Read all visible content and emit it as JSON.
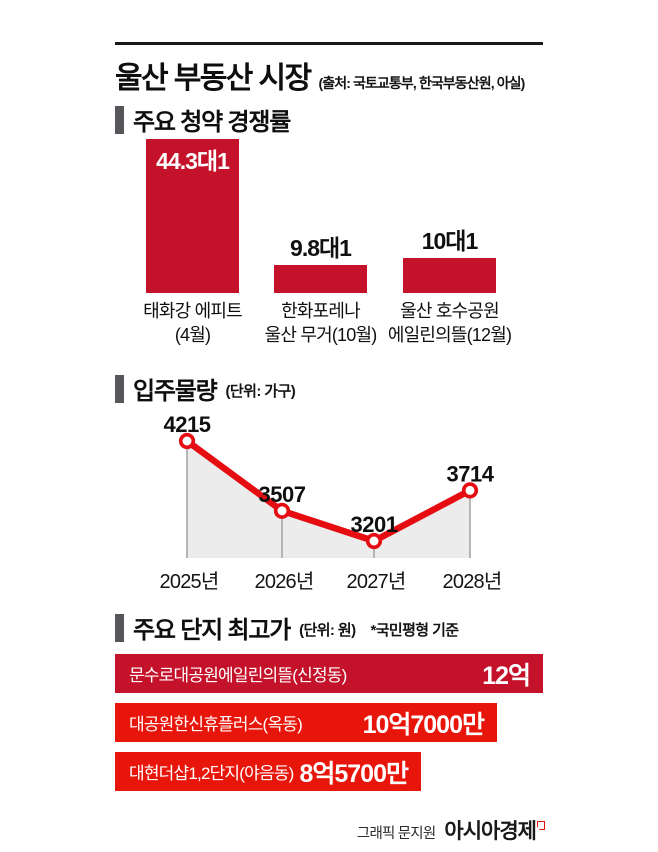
{
  "header": {
    "title": "울산 부동산 시장",
    "source": "(출처: 국토교통부, 한국부동산원, 아실)"
  },
  "sections": {
    "competition": {
      "title": "주요 청약 경쟁률",
      "bars": [
        {
          "value": 44.3,
          "value_label": "44.3대1",
          "name_line1": "태화강 에피트",
          "name_line2": "(4월)"
        },
        {
          "value": 9.8,
          "value_label": "9.8대1",
          "name_line1": "한화포레나",
          "name_line2": "울산 무거(10월)"
        },
        {
          "value": 10,
          "value_label": "10대1",
          "name_line1": "울산 호수공원",
          "name_line2": "에일린의뜰(12월)"
        }
      ]
    },
    "supply": {
      "title": "입주물량",
      "unit": "(단위: 가구)",
      "points": [
        {
          "year": "2025년",
          "value": 4215
        },
        {
          "year": "2026년",
          "value": 3507
        },
        {
          "year": "2027년",
          "value": 3201
        },
        {
          "year": "2028년",
          "value": 3714
        }
      ]
    },
    "prices": {
      "title": "주요 단지 최고가",
      "unit": "(단위: 원)",
      "note": "*국민평형 기준",
      "bars": [
        {
          "name": "문수로대공원에일린의뜰(신정동)",
          "value_label": "12억",
          "value_eok": 12,
          "color": "#c5122b"
        },
        {
          "name": "대공원한신휴플러스(옥동)",
          "value_label": "10억7000만",
          "value_eok": 10.7,
          "color": "#e8150a"
        },
        {
          "name": "대현더샵1,2단지(야음동)",
          "value_label": "8억5700만",
          "value_eok": 8.57,
          "color": "#e8150a"
        }
      ]
    }
  },
  "footer": {
    "credit": "그래픽 문지원",
    "logo": "아시아경제"
  },
  "colors": {
    "bar_dark_red": "#c5122b",
    "bar_bright_red": "#e8150a",
    "line_red": "#e60d12",
    "section_marker_gray": "#55575a",
    "area_fill_gray": "#ececec",
    "guide_line_gray": "#a7a7a7"
  },
  "chart_data": [
    {
      "type": "bar",
      "title": "주요 청약 경쟁률",
      "categories": [
        "태화강 에피트(4월)",
        "한화포레나 울산 무거(10월)",
        "울산 호수공원 에일린의뜰(12월)"
      ],
      "values": [
        44.3,
        9.8,
        10
      ],
      "data_labels": [
        "44.3대1",
        "9.8대1",
        "10대1"
      ],
      "xlabel": "",
      "ylabel": "경쟁률",
      "ylim": [
        0,
        45
      ],
      "grid": false,
      "legend": "none"
    },
    {
      "type": "line",
      "title": "입주물량",
      "xlabel": "",
      "ylabel": "가구",
      "categories": [
        "2025년",
        "2026년",
        "2027년",
        "2028년"
      ],
      "values": [
        4215,
        3507,
        3201,
        3714
      ],
      "data_labels": [
        "4215",
        "3507",
        "3201",
        "3714"
      ],
      "area_fill": true,
      "grid": false,
      "legend": "none"
    },
    {
      "type": "bar",
      "orientation": "horizontal",
      "title": "주요 단지 최고가 (단위: 원) *국민평형 기준",
      "categories": [
        "문수로대공원에일린의뜰(신정동)",
        "대공원한신휴플러스(옥동)",
        "대현더샵1,2단지(야음동)"
      ],
      "values": [
        1200000000,
        1070000000,
        857000000
      ],
      "data_labels": [
        "12억",
        "10억7000만",
        "8억5700만"
      ],
      "grid": false,
      "legend": "none"
    }
  ]
}
